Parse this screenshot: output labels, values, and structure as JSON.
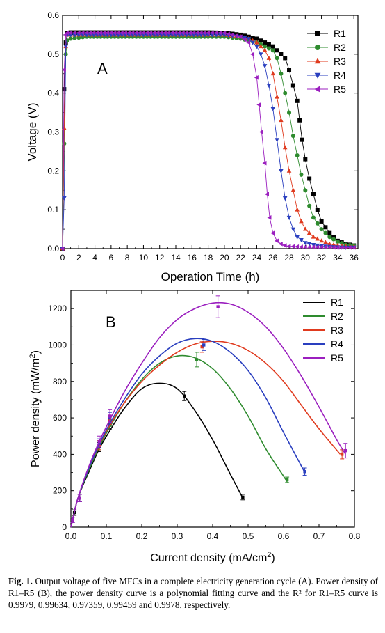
{
  "chart_data": [
    {
      "type": "scatter",
      "panel_label": "A",
      "xlabel": "Operation Time (h)",
      "ylabel": "Voltage (V)",
      "xlim": [
        0,
        36.5
      ],
      "ylim": [
        0,
        0.6
      ],
      "xticks": [
        "0",
        "2",
        "4",
        "6",
        "8",
        "10",
        "12",
        "14",
        "16",
        "18",
        "20",
        "22",
        "24",
        "26",
        "28",
        "30",
        "32",
        "34",
        "36"
      ],
      "yticks": [
        "0.0",
        "0.1",
        "0.2",
        "0.3",
        "0.4",
        "0.5",
        "0.6"
      ],
      "legend_position": "top-right",
      "series": [
        {
          "name": "R1",
          "color": "#000000",
          "marker": "square",
          "plateau": 0.555,
          "x": [
            0,
            0.2,
            0.4,
            0.6,
            1,
            3,
            6,
            10,
            14,
            18,
            20,
            22,
            24,
            25,
            26,
            26.5,
            27,
            27.5,
            28,
            28.5,
            29,
            29.3,
            29.6,
            30,
            30.5,
            31,
            31.5,
            32,
            33,
            34,
            35,
            36
          ],
          "y": [
            0.0,
            0.41,
            0.53,
            0.555,
            0.556,
            0.556,
            0.556,
            0.556,
            0.556,
            0.556,
            0.555,
            0.55,
            0.54,
            0.53,
            0.52,
            0.51,
            0.5,
            0.49,
            0.46,
            0.42,
            0.38,
            0.33,
            0.28,
            0.23,
            0.18,
            0.14,
            0.1,
            0.07,
            0.04,
            0.02,
            0.012,
            0.008
          ]
        },
        {
          "name": "R2",
          "color": "#2e8b2e",
          "marker": "circle",
          "x": [
            0,
            0.2,
            0.4,
            0.6,
            1,
            3,
            6,
            10,
            14,
            18,
            20,
            22,
            23,
            24,
            25,
            26,
            26.5,
            27,
            27.5,
            28,
            28.5,
            29,
            29.5,
            30,
            30.5,
            31,
            32,
            33,
            34,
            35,
            36
          ],
          "y": [
            0.0,
            0.27,
            0.5,
            0.535,
            0.54,
            0.545,
            0.545,
            0.545,
            0.545,
            0.545,
            0.545,
            0.54,
            0.535,
            0.53,
            0.52,
            0.51,
            0.49,
            0.45,
            0.4,
            0.35,
            0.29,
            0.24,
            0.19,
            0.15,
            0.11,
            0.08,
            0.05,
            0.03,
            0.018,
            0.01,
            0.008
          ]
        },
        {
          "name": "R3",
          "color": "#e03a1e",
          "marker": "triangle-up",
          "x": [
            0,
            0.2,
            0.4,
            0.6,
            1,
            3,
            6,
            10,
            14,
            18,
            20,
            22,
            23,
            24,
            25,
            25.5,
            26,
            26.5,
            27,
            27.5,
            28,
            28.5,
            29,
            29.5,
            30,
            31,
            32,
            33,
            34,
            35,
            36
          ],
          "y": [
            0.0,
            0.31,
            0.52,
            0.55,
            0.55,
            0.55,
            0.55,
            0.55,
            0.55,
            0.55,
            0.55,
            0.545,
            0.54,
            0.53,
            0.51,
            0.49,
            0.45,
            0.39,
            0.33,
            0.26,
            0.2,
            0.15,
            0.1,
            0.07,
            0.05,
            0.03,
            0.02,
            0.012,
            0.008,
            0.006,
            0.005
          ]
        },
        {
          "name": "R4",
          "color": "#2a3fbf",
          "marker": "triangle-down",
          "x": [
            0,
            0.2,
            0.4,
            0.6,
            1,
            3,
            6,
            10,
            14,
            18,
            20,
            22,
            23,
            24,
            24.5,
            25,
            25.5,
            26,
            26.5,
            27,
            27.5,
            28,
            28.5,
            29,
            30,
            31,
            32,
            33,
            34,
            35,
            36
          ],
          "y": [
            0.0,
            0.13,
            0.52,
            0.55,
            0.55,
            0.55,
            0.55,
            0.55,
            0.55,
            0.55,
            0.55,
            0.545,
            0.54,
            0.52,
            0.5,
            0.47,
            0.42,
            0.36,
            0.28,
            0.2,
            0.13,
            0.08,
            0.05,
            0.03,
            0.015,
            0.01,
            0.007,
            0.005,
            0.004,
            0.003,
            0.003
          ]
        },
        {
          "name": "R5",
          "color": "#9b1fbf",
          "marker": "triangle-left",
          "x": [
            0,
            0.2,
            0.4,
            0.6,
            1,
            3,
            6,
            10,
            14,
            18,
            20,
            22,
            23,
            23.5,
            24,
            24.3,
            24.6,
            25,
            25.3,
            25.6,
            26,
            26.5,
            27,
            27.5,
            28,
            29,
            30,
            31,
            32,
            34,
            36
          ],
          "y": [
            0.0,
            0.46,
            0.55,
            0.555,
            0.555,
            0.555,
            0.555,
            0.555,
            0.555,
            0.555,
            0.555,
            0.545,
            0.53,
            0.5,
            0.44,
            0.37,
            0.3,
            0.22,
            0.14,
            0.08,
            0.04,
            0.02,
            0.012,
            0.008,
            0.006,
            0.005,
            0.004,
            0.004,
            0.004,
            0.003,
            0.003
          ]
        }
      ]
    },
    {
      "type": "line",
      "panel_label": "B",
      "xlabel": "Current density (mA/cm",
      "xlabel_sup": "2",
      "xlabel_tail": ")",
      "ylabel": "Power density (mW/m",
      "ylabel_sup": "2",
      "ylabel_tail": ")",
      "xlim": [
        0,
        0.8
      ],
      "ylim": [
        0,
        1300
      ],
      "xticks": [
        "0.0",
        "0.1",
        "0.2",
        "0.3",
        "0.4",
        "0.5",
        "0.6",
        "0.7",
        "0.8"
      ],
      "yticks": [
        "0",
        "200",
        "400",
        "600",
        "800",
        "1000",
        "1200"
      ],
      "legend_position": "top-right",
      "series": [
        {
          "name": "R1",
          "color": "#000000",
          "curve_x": [
            0,
            0.02,
            0.05,
            0.08,
            0.11,
            0.15,
            0.2,
            0.25,
            0.3,
            0.35,
            0.4,
            0.45,
            0.485
          ],
          "curve_y": [
            0,
            160,
            300,
            430,
            530,
            650,
            760,
            790,
            760,
            640,
            480,
            290,
            160
          ],
          "points": [
            {
              "x": 0.005,
              "y": 40,
              "err": 15
            },
            {
              "x": 0.01,
              "y": 80,
              "err": 15
            },
            {
              "x": 0.025,
              "y": 160,
              "err": 20
            },
            {
              "x": 0.08,
              "y": 440,
              "err": 25
            },
            {
              "x": 0.11,
              "y": 560,
              "err": 25
            },
            {
              "x": 0.32,
              "y": 720,
              "err": 25
            },
            {
              "x": 0.485,
              "y": 165,
              "err": 15
            }
          ]
        },
        {
          "name": "R2",
          "color": "#2e8b2e",
          "curve_x": [
            0,
            0.02,
            0.05,
            0.08,
            0.11,
            0.15,
            0.2,
            0.25,
            0.3,
            0.35,
            0.4,
            0.45,
            0.5,
            0.55,
            0.6,
            0.61
          ],
          "curve_y": [
            0,
            160,
            310,
            440,
            550,
            680,
            810,
            900,
            940,
            930,
            870,
            760,
            610,
            430,
            280,
            250
          ],
          "points": [
            {
              "x": 0.005,
              "y": 40,
              "err": 15
            },
            {
              "x": 0.025,
              "y": 160,
              "err": 20
            },
            {
              "x": 0.08,
              "y": 450,
              "err": 25
            },
            {
              "x": 0.11,
              "y": 580,
              "err": 25
            },
            {
              "x": 0.355,
              "y": 920,
              "err": 40
            },
            {
              "x": 0.61,
              "y": 260,
              "err": 15
            }
          ]
        },
        {
          "name": "R3",
          "color": "#e03a1e",
          "curve_x": [
            0,
            0.02,
            0.05,
            0.08,
            0.11,
            0.15,
            0.2,
            0.25,
            0.3,
            0.35,
            0.4,
            0.45,
            0.5,
            0.55,
            0.6,
            0.65,
            0.7,
            0.76
          ],
          "curve_y": [
            0,
            160,
            320,
            450,
            560,
            680,
            800,
            890,
            960,
            1005,
            1020,
            1010,
            970,
            900,
            800,
            670,
            540,
            400
          ],
          "points": [
            {
              "x": 0.005,
              "y": 40,
              "err": 15
            },
            {
              "x": 0.025,
              "y": 160,
              "err": 20
            },
            {
              "x": 0.08,
              "y": 450,
              "err": 25
            },
            {
              "x": 0.11,
              "y": 590,
              "err": 25
            },
            {
              "x": 0.37,
              "y": 990,
              "err": 30
            },
            {
              "x": 0.765,
              "y": 400,
              "err": 25
            }
          ]
        },
        {
          "name": "R4",
          "color": "#2a3fbf",
          "curve_x": [
            0,
            0.02,
            0.05,
            0.08,
            0.11,
            0.15,
            0.2,
            0.25,
            0.3,
            0.35,
            0.4,
            0.45,
            0.5,
            0.55,
            0.6,
            0.66
          ],
          "curve_y": [
            0,
            160,
            320,
            455,
            570,
            700,
            840,
            940,
            1010,
            1035,
            1020,
            960,
            860,
            710,
            520,
            300
          ],
          "points": [
            {
              "x": 0.005,
              "y": 40,
              "err": 15
            },
            {
              "x": 0.025,
              "y": 160,
              "err": 20
            },
            {
              "x": 0.08,
              "y": 460,
              "err": 25
            },
            {
              "x": 0.11,
              "y": 600,
              "err": 30
            },
            {
              "x": 0.375,
              "y": 1000,
              "err": 30
            },
            {
              "x": 0.66,
              "y": 305,
              "err": 20
            }
          ]
        },
        {
          "name": "R5",
          "color": "#9b1fbf",
          "curve_x": [
            0,
            0.02,
            0.05,
            0.08,
            0.11,
            0.15,
            0.2,
            0.25,
            0.3,
            0.35,
            0.4,
            0.45,
            0.5,
            0.55,
            0.6,
            0.65,
            0.7,
            0.75,
            0.775
          ],
          "curve_y": [
            0,
            160,
            330,
            470,
            590,
            740,
            900,
            1040,
            1140,
            1200,
            1230,
            1225,
            1180,
            1100,
            980,
            830,
            660,
            480,
            400
          ],
          "points": [
            {
              "x": 0.005,
              "y": 40,
              "err": 15
            },
            {
              "x": 0.025,
              "y": 160,
              "err": 20
            },
            {
              "x": 0.08,
              "y": 470,
              "err": 30
            },
            {
              "x": 0.11,
              "y": 610,
              "err": 35
            },
            {
              "x": 0.415,
              "y": 1210,
              "err": 60
            },
            {
              "x": 0.775,
              "y": 420,
              "err": 40
            }
          ]
        }
      ]
    }
  ],
  "caption": {
    "label": "Fig. 1.",
    "text": "Output voltage of five MFCs in a complete electricity generation cycle (A). Power density of R1–R5 (B), the power density curve is a polynomial fitting curve and the R² for R1–R5 curve is 0.9979, 0.99634, 0.97359, 0.99459 and 0.9978, respectively."
  }
}
